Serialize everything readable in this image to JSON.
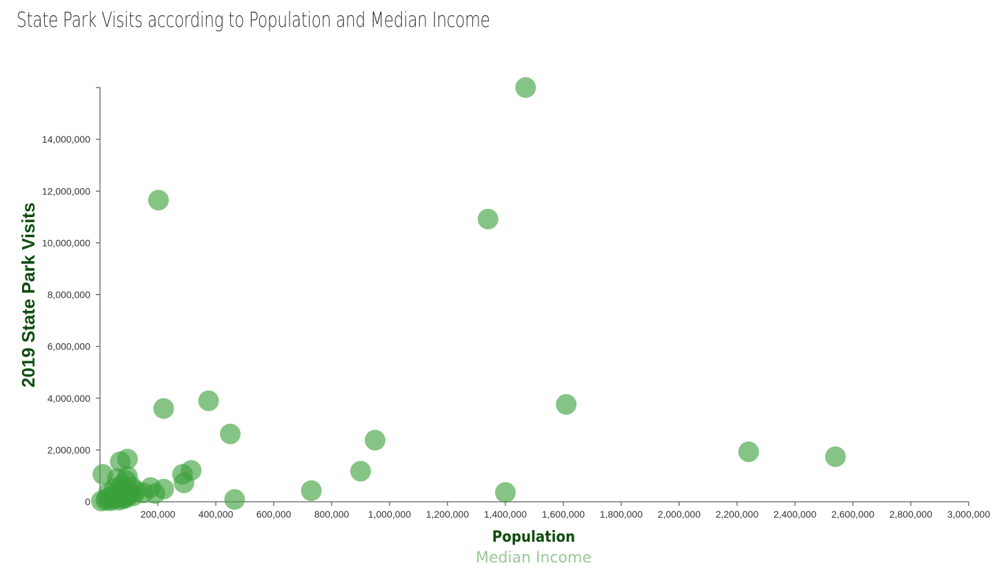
{
  "page": {
    "title": "State Park Visits according to Population and Median Income"
  },
  "chart_data": {
    "type": "scatter",
    "title": "State Park Visits according to Population and Median Income",
    "ylabel": "2019 State Park Visits",
    "xlabel_options": [
      {
        "label": "Population",
        "active": true
      },
      {
        "label": "Median Income",
        "active": false
      }
    ],
    "xlim": [
      0,
      3000000
    ],
    "ylim": [
      0,
      16000000
    ],
    "x_ticks": [
      200000,
      400000,
      600000,
      800000,
      1000000,
      1200000,
      1400000,
      1600000,
      1800000,
      2000000,
      2200000,
      2400000,
      2600000,
      2800000,
      3000000
    ],
    "x_tick_labels": [
      "200,000",
      "400,000",
      "600,000",
      "800,000",
      "1,000,000",
      "1,200,000",
      "1,400,000",
      "1,600,000",
      "1,800,000",
      "2,000,000",
      "2,200,000",
      "2,400,000",
      "2,600,000",
      "2,800,000",
      "3,000,000"
    ],
    "y_ticks": [
      0,
      2000000,
      4000000,
      6000000,
      8000000,
      10000000,
      12000000,
      14000000
    ],
    "y_tick_labels": [
      "0",
      "2,000,000",
      "4,000,000",
      "6,000,000",
      "8,000,000",
      "10,000,000",
      "12,000,000",
      "14,000,000"
    ],
    "grid": false,
    "point_color": "#3a9f3a",
    "points": [
      {
        "x": 1470000,
        "y": 16000000
      },
      {
        "x": 202000,
        "y": 11650000
      },
      {
        "x": 1340000,
        "y": 10920000
      },
      {
        "x": 220000,
        "y": 3600000
      },
      {
        "x": 375000,
        "y": 3900000
      },
      {
        "x": 450000,
        "y": 2620000
      },
      {
        "x": 950000,
        "y": 2380000
      },
      {
        "x": 1610000,
        "y": 3760000
      },
      {
        "x": 2240000,
        "y": 1930000
      },
      {
        "x": 2540000,
        "y": 1740000
      },
      {
        "x": 900000,
        "y": 1180000
      },
      {
        "x": 730000,
        "y": 430000
      },
      {
        "x": 1400000,
        "y": 360000
      },
      {
        "x": 465000,
        "y": 90000
      },
      {
        "x": 315000,
        "y": 1210000
      },
      {
        "x": 285000,
        "y": 1060000
      },
      {
        "x": 290000,
        "y": 730000
      },
      {
        "x": 220000,
        "y": 490000
      },
      {
        "x": 175000,
        "y": 550000
      },
      {
        "x": 150000,
        "y": 340000
      },
      {
        "x": 190000,
        "y": 320000
      },
      {
        "x": 95000,
        "y": 1650000
      },
      {
        "x": 70000,
        "y": 1550000
      },
      {
        "x": 10000,
        "y": 1060000
      },
      {
        "x": 95000,
        "y": 980000
      },
      {
        "x": 60000,
        "y": 900000
      },
      {
        "x": 90000,
        "y": 820000
      },
      {
        "x": 75000,
        "y": 640000
      },
      {
        "x": 110000,
        "y": 580000
      },
      {
        "x": 125000,
        "y": 420000
      },
      {
        "x": 50000,
        "y": 520000
      },
      {
        "x": 30000,
        "y": 360000
      },
      {
        "x": 60000,
        "y": 300000
      },
      {
        "x": 85000,
        "y": 340000
      },
      {
        "x": 100000,
        "y": 260000
      },
      {
        "x": 40000,
        "y": 200000
      },
      {
        "x": 70000,
        "y": 180000
      },
      {
        "x": 55000,
        "y": 140000
      },
      {
        "x": 80000,
        "y": 110000
      },
      {
        "x": 25000,
        "y": 130000
      },
      {
        "x": 45000,
        "y": 90000
      },
      {
        "x": 65000,
        "y": 60000
      },
      {
        "x": 35000,
        "y": 40000
      },
      {
        "x": 90000,
        "y": 150000
      },
      {
        "x": 5000,
        "y": 30000
      },
      {
        "x": 20000,
        "y": 60000
      },
      {
        "x": 105000,
        "y": 330000
      },
      {
        "x": 115000,
        "y": 230000
      }
    ]
  }
}
